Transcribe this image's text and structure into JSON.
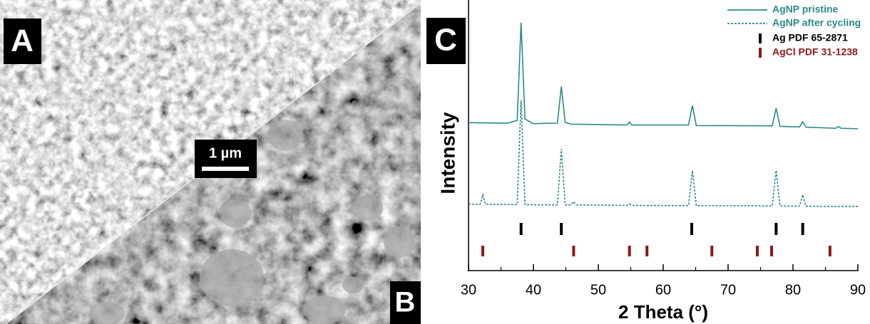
{
  "image": {
    "label_a": "A",
    "label_b": "B",
    "scale_bar": "1 µm"
  },
  "chart_data": {
    "type": "line",
    "panel_label": "C",
    "x_label": "2 Theta (°)",
    "y_label": "Intensity",
    "x": [
      30,
      31.8,
      32.2,
      32.6,
      36,
      37.5,
      38.1,
      38.7,
      40,
      43.7,
      44.3,
      44.9,
      45.8,
      46.2,
      46.6,
      54.4,
      54.8,
      55.2,
      63.9,
      64.5,
      65.1,
      76.8,
      77.4,
      78,
      81,
      81.5,
      82,
      86.6,
      87,
      87.4,
      90
    ],
    "series": [
      {
        "name": "AgNP pristine",
        "color": "#2a8a88",
        "dashed": false,
        "values": [
          54.7,
          54.6,
          54.6,
          54.6,
          54.5,
          55.5,
          91.6,
          56,
          54.3,
          54.5,
          68,
          54.8,
          54.1,
          54.1,
          54.1,
          53.8,
          54.9,
          53.8,
          53.8,
          61,
          53.6,
          53.5,
          60,
          53.3,
          53.1,
          55,
          53,
          52.6,
          53.3,
          52.6,
          52.4
        ]
      },
      {
        "name": "AgNP after cycling",
        "color": "#2a8a88",
        "dashed": true,
        "values": [
          24.6,
          24.5,
          28,
          24.5,
          24.4,
          24.4,
          63,
          24.4,
          24.3,
          24.3,
          45,
          24.3,
          24.3,
          25.5,
          24.3,
          24.1,
          24.6,
          24.1,
          24,
          37,
          24,
          23.9,
          37,
          23.9,
          23.8,
          28,
          23.8,
          23.7,
          23.7,
          23.7,
          23.7
        ]
      }
    ],
    "references": [
      {
        "name": "Ag PDF 65-2871",
        "color": "#000000",
        "x": [
          38.1,
          44.3,
          64.4,
          77.4,
          81.5
        ]
      },
      {
        "name": "AgCl PDF 31-1238",
        "color": "#8b1a1a",
        "x": [
          32.2,
          46.2,
          54.8,
          57.5,
          67.5,
          74.5,
          76.7,
          85.7
        ]
      }
    ],
    "xlim": [
      30,
      90
    ],
    "xticks": [
      30,
      40,
      50,
      60,
      70,
      80,
      90
    ],
    "minor_xticks": [
      35,
      45,
      55,
      65,
      75,
      85
    ],
    "ylim": [
      0,
      100
    ],
    "legend": "upper right"
  }
}
